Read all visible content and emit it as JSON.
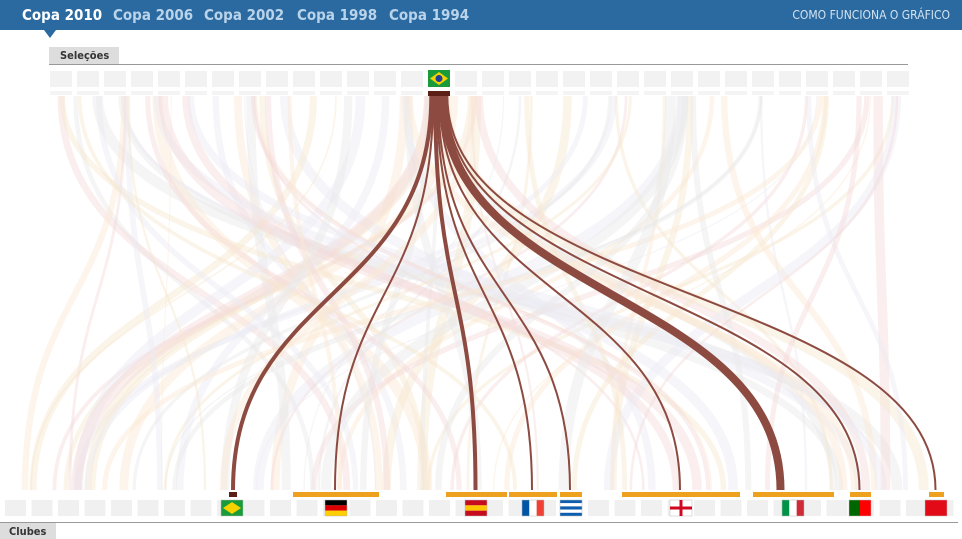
{
  "nav": {
    "items": [
      "Copa 2010",
      "Copa 2006",
      "Copa 2002",
      "Copa 1998",
      "Copa 1994"
    ],
    "help": "COMO FUNCIONA O GRÁFICO"
  },
  "top_label": "Seleções",
  "bottom_label": "Clubes",
  "links": [
    {
      "value": 2
    },
    {
      "value": 1
    },
    {
      "value": 2
    },
    {
      "value": 1
    },
    {
      "value": 1
    },
    {
      "value": 1
    },
    {
      "value": 4
    },
    {
      "value": 1
    },
    {
      "value": 1
    }
  ]
}
